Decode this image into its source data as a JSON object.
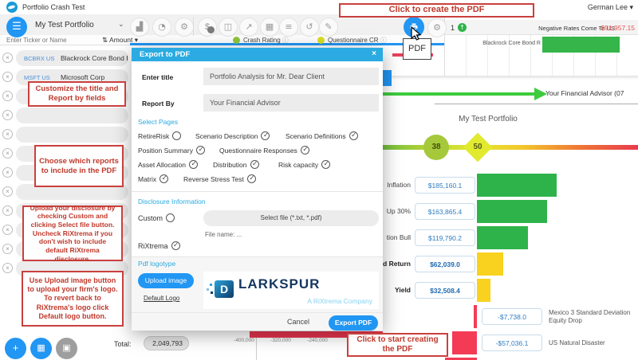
{
  "titlebar": {
    "app_title": "Portfolio Crash Test",
    "user_menu": "German Lee"
  },
  "toolbar": {
    "portfolio_selector": "My Test Portfolio",
    "pdf_tooltip": "PDF"
  },
  "filter_row": {
    "search_placeholder": "Enter Ticker or Name",
    "sort_label": "Amount",
    "crash_rating_label": "Crash Rating",
    "questionnaire_label": "Questionnaire CR"
  },
  "sidebar": {
    "holdings": [
      {
        "ticker": "BCBRX US",
        "name": "Blackrock Core Bond R"
      },
      {
        "ticker": "MSFT US",
        "name": "Microsoft Corp"
      }
    ],
    "total_label": "Total:",
    "total_value": "2,049,793"
  },
  "scenario_panel": {
    "rank": "1",
    "scenario_name": "Negative Rates Come To US",
    "scenario_value": "-$91,957.15",
    "position_label": "Blackrock Core Bond R"
  },
  "modal": {
    "title": "Export to PDF",
    "close_label": "×",
    "enter_title_label": "Enter title",
    "enter_title_value": "Portfolio Analysis for Mr. Dear Client",
    "report_by_label": "Report By",
    "report_by_value": "Your Financial Advisor",
    "select_pages_label": "Select Pages",
    "pages": [
      {
        "label": "RetireRisk",
        "checked": false
      },
      {
        "label": "Scenario Description",
        "checked": true
      },
      {
        "label": "Scenario Definitions",
        "checked": true
      },
      {
        "label": "Position Summary",
        "checked": true
      },
      {
        "label": "Questionnaire Responses",
        "checked": true
      },
      {
        "label": "Asset Allocation",
        "checked": true
      },
      {
        "label": "Distribution",
        "checked": true
      },
      {
        "label": "Risk capacity",
        "checked": true
      },
      {
        "label": "Matrix",
        "checked": true
      },
      {
        "label": "Reverse Stress Test",
        "checked": true
      }
    ],
    "disclosure_label": "Disclosure Information",
    "custom": {
      "label": "Custom",
      "checked": false
    },
    "select_file_label": "Select file (*.txt, *.pdf)",
    "file_name_label": "File name: ...",
    "rixtrema": {
      "label": "RiXtrema",
      "checked": true
    },
    "logotype_label": "Pdf logotype",
    "upload_image_label": "Upload image",
    "default_logo_label": "Default Logo",
    "logo": {
      "icon_letter": "D",
      "brand": "LARKSPUR",
      "tagline": "A RiXtrema Company"
    },
    "cancel_label": "Cancel",
    "export_label": "Export PDF"
  },
  "preview": {
    "advisor_text": "Your Financial Advisor (07",
    "gauge": {
      "title": "My Test Portfolio",
      "marker_circle": "38",
      "marker_diamond": "50"
    },
    "rows": [
      {
        "label": "Inflation",
        "value": "$185,160.1",
        "amount": 185160.1,
        "color": "green",
        "bold": false
      },
      {
        "label": "Up 30%",
        "value": "$163,865.4",
        "amount": 163865.4,
        "color": "green",
        "bold": false
      },
      {
        "label": "tion Bull",
        "value": "$119,790.2",
        "amount": 119790.2,
        "color": "green",
        "bold": false
      },
      {
        "label": "d Return",
        "value": "$62,039.0",
        "amount": 62039.0,
        "color": "yellow",
        "bold": true
      },
      {
        "label": "Yield",
        "value": "$32,508.4",
        "amount": 32508.4,
        "color": "yellow",
        "bold": true
      }
    ],
    "negative_rows": [
      {
        "value": "-$7,738.0",
        "amount": -7738.0,
        "label": "Mexico 3 Standard Deviation Equity Drop"
      },
      {
        "value": "-$57,036.1",
        "amount": -57036.1,
        "label": "US Natural Disaster"
      }
    ],
    "axis_labels": [
      "-400,000",
      "-320,000",
      "-240,000"
    ]
  },
  "annotations": [
    {
      "text": "Click to create the PDF"
    },
    {
      "text": "Customize the title and Report by fields"
    },
    {
      "text": "Choose which reports to include in the PDF"
    },
    {
      "text": "Upload your disclosure by checking Custom and clicking Select file button. Uncheck RiXtrema if you don't wish to include default RiXtrema disclosure."
    },
    {
      "text": "Use Upload image button to upload your firm's logo. To revert back to RiXtrema's logo click Default logo button."
    },
    {
      "text": "Click to start creating the PDF"
    }
  ]
}
